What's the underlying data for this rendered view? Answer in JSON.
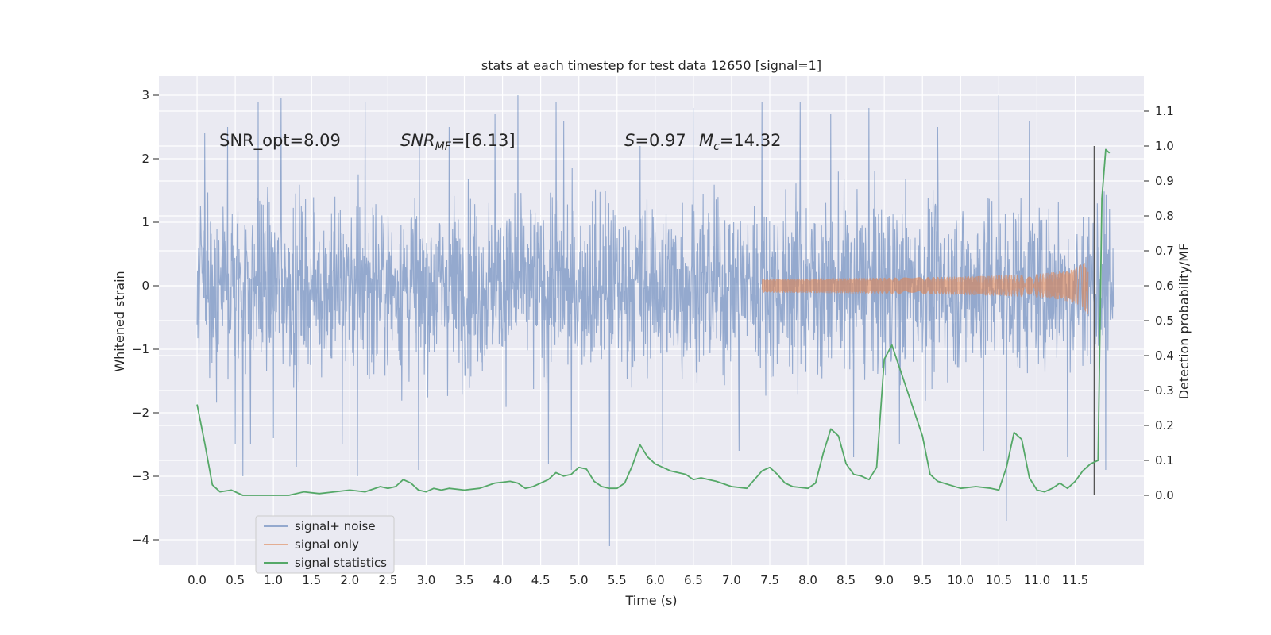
{
  "chart_data": {
    "type": "line",
    "title": "stats at each timestep for test data 12650 [signal=1]",
    "xlabel": "Time (s)",
    "ylabel": "Whitened strain",
    "y2label": "Detection probability/MF",
    "xlim": [
      -0.5,
      12.4
    ],
    "ylim": [
      -4.4,
      3.3
    ],
    "y2lim": [
      -0.2,
      1.2
    ],
    "x_ticks": [
      "0.0",
      "0.5",
      "1.0",
      "1.5",
      "2.0",
      "2.5",
      "3.0",
      "3.5",
      "4.0",
      "4.5",
      "5.0",
      "5.5",
      "6.0",
      "6.5",
      "7.0",
      "7.5",
      "8.0",
      "8.5",
      "9.0",
      "9.5",
      "10.0",
      "10.5",
      "11.0",
      "11.5"
    ],
    "y_ticks": [
      "3",
      "2",
      "1",
      "0",
      "−1",
      "−2",
      "−3",
      "−4"
    ],
    "y2_ticks": [
      "1.1",
      "1.0",
      "0.9",
      "0.8",
      "0.7",
      "0.6",
      "0.5",
      "0.4",
      "0.3",
      "0.2",
      "0.1",
      "0.0"
    ],
    "grid": true,
    "legend_position": "lower-left",
    "annotations": {
      "snr_opt": "SNR_opt=8.09",
      "snr_mf_label": "SNR",
      "snr_mf_sub": "MF",
      "snr_mf_value": "=[6.13]",
      "s_label": "S",
      "s_value": "=0.97",
      "mc_label": "M",
      "mc_sub": "c",
      "mc_value": "=14.32"
    },
    "marker_line_x": 11.75,
    "series": [
      {
        "name": "signal+ noise",
        "color": "#4c72b0",
        "kind": "noise",
        "x_range": [
          0.0,
          12.0
        ],
        "spikes_up": [
          [
            0.1,
            2.4
          ],
          [
            0.4,
            2.5
          ],
          [
            0.8,
            2.9
          ],
          [
            1.1,
            2.95
          ],
          [
            1.9,
            2.4
          ],
          [
            2.2,
            2.9
          ],
          [
            3.3,
            2.5
          ],
          [
            3.9,
            2.7
          ],
          [
            4.2,
            3.0
          ],
          [
            4.6,
            2.7
          ],
          [
            4.7,
            2.9
          ],
          [
            4.8,
            2.6
          ],
          [
            5.8,
            2.2
          ],
          [
            6.5,
            2.8
          ],
          [
            7.4,
            2.9
          ],
          [
            7.9,
            2.9
          ],
          [
            8.3,
            2.7
          ],
          [
            8.8,
            2.8
          ],
          [
            9.7,
            2.5
          ],
          [
            10.3,
            2.7
          ],
          [
            10.5,
            3.0
          ],
          [
            10.9,
            2.6
          ],
          [
            11.4,
            2.5
          ],
          [
            11.9,
            2.6
          ]
        ],
        "spikes_down": [
          [
            0.5,
            -2.5
          ],
          [
            0.6,
            -3.0
          ],
          [
            0.7,
            -2.5
          ],
          [
            1.0,
            -2.4
          ],
          [
            1.3,
            -2.85
          ],
          [
            1.9,
            -2.5
          ],
          [
            2.1,
            -3.0
          ],
          [
            2.9,
            -2.9
          ],
          [
            4.6,
            -2.8
          ],
          [
            4.9,
            -2.9
          ],
          [
            5.4,
            -4.1
          ],
          [
            6.1,
            -2.8
          ],
          [
            7.1,
            -2.6
          ],
          [
            8.6,
            -2.7
          ],
          [
            9.2,
            -2.5
          ],
          [
            10.3,
            -2.6
          ],
          [
            10.6,
            -3.7
          ],
          [
            11.4,
            -2.7
          ],
          [
            11.9,
            -2.9
          ]
        ]
      },
      {
        "name": "signal only",
        "color": "#dd8452",
        "kind": "chirp",
        "x_start": 7.4,
        "x_end": 11.67,
        "peak_amplitude": 1.1
      },
      {
        "name": "signal statistics",
        "color": "#55a868",
        "kind": "line",
        "x": [
          0.0,
          0.1,
          0.2,
          0.3,
          0.45,
          0.6,
          0.8,
          1.0,
          1.2,
          1.4,
          1.6,
          1.8,
          2.0,
          2.2,
          2.4,
          2.5,
          2.6,
          2.7,
          2.8,
          2.9,
          3.0,
          3.1,
          3.2,
          3.3,
          3.5,
          3.7,
          3.9,
          4.1,
          4.2,
          4.3,
          4.4,
          4.6,
          4.7,
          4.8,
          4.9,
          5.0,
          5.1,
          5.2,
          5.3,
          5.4,
          5.5,
          5.6,
          5.7,
          5.8,
          5.9,
          6.0,
          6.2,
          6.4,
          6.5,
          6.6,
          6.7,
          6.8,
          7.0,
          7.2,
          7.4,
          7.5,
          7.6,
          7.7,
          7.8,
          8.0,
          8.1,
          8.2,
          8.3,
          8.4,
          8.5,
          8.6,
          8.7,
          8.8,
          8.9,
          9.0,
          9.1,
          9.3,
          9.5,
          9.6,
          9.7,
          10.0,
          10.2,
          10.4,
          10.5,
          10.6,
          10.7,
          10.8,
          10.9,
          11.0,
          11.1,
          11.2,
          11.3,
          11.4,
          11.5,
          11.6,
          11.7,
          11.8,
          11.85,
          11.9,
          11.95
        ],
        "y": [
          0.26,
          0.15,
          0.03,
          0.01,
          0.015,
          0.0,
          0.0,
          0.0,
          0.0,
          0.01,
          0.005,
          0.01,
          0.015,
          0.01,
          0.025,
          0.02,
          0.025,
          0.045,
          0.035,
          0.015,
          0.01,
          0.02,
          0.015,
          0.02,
          0.015,
          0.02,
          0.035,
          0.04,
          0.035,
          0.02,
          0.025,
          0.045,
          0.065,
          0.055,
          0.06,
          0.08,
          0.075,
          0.04,
          0.025,
          0.02,
          0.02,
          0.035,
          0.085,
          0.145,
          0.11,
          0.09,
          0.07,
          0.06,
          0.045,
          0.05,
          0.045,
          0.04,
          0.025,
          0.02,
          0.07,
          0.08,
          0.06,
          0.035,
          0.025,
          0.02,
          0.035,
          0.12,
          0.19,
          0.17,
          0.09,
          0.06,
          0.055,
          0.045,
          0.08,
          0.39,
          0.43,
          0.3,
          0.17,
          0.06,
          0.04,
          0.02,
          0.025,
          0.02,
          0.015,
          0.08,
          0.18,
          0.16,
          0.05,
          0.015,
          0.01,
          0.02,
          0.035,
          0.02,
          0.04,
          0.07,
          0.09,
          0.1,
          0.85,
          0.99,
          0.98
        ]
      }
    ]
  }
}
